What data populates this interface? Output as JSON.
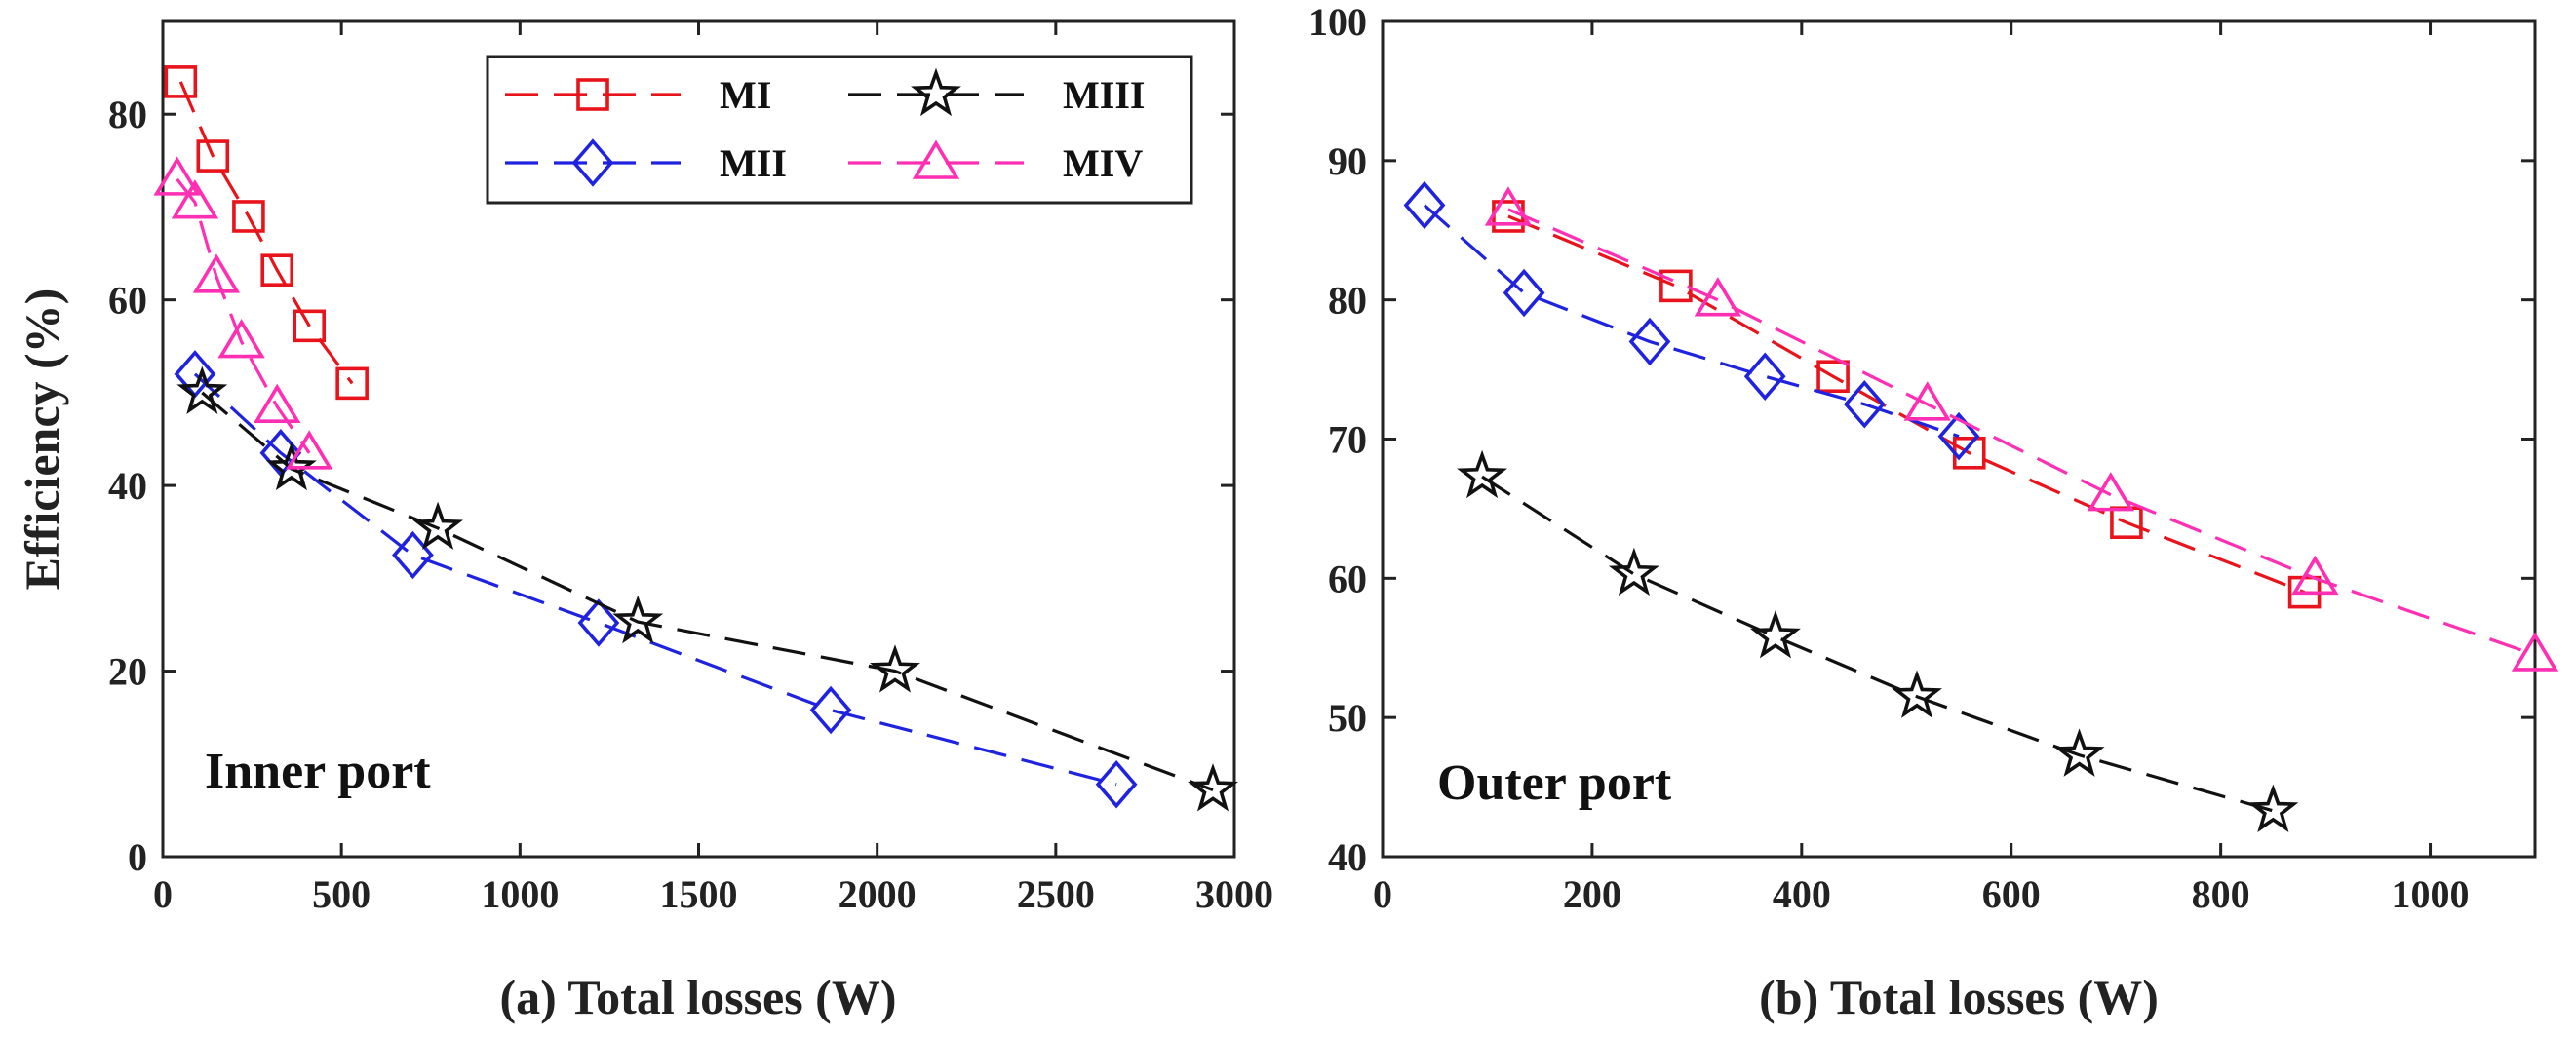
{
  "series_styles": {
    "MI": {
      "color": "#e8131b",
      "marker": "square"
    },
    "MII": {
      "color": "#1f23e0",
      "marker": "diamond"
    },
    "MIII": {
      "color": "#111111",
      "marker": "star"
    },
    "MIV": {
      "color": "#ff2fb4",
      "marker": "triangle"
    }
  },
  "chart_data": [
    {
      "type": "line",
      "name": "panel-a",
      "xlabel": "(a) Total losses (W)",
      "ylabel": "Efficiency (%)",
      "annotation": "Inner port",
      "xlim": [
        0,
        3000
      ],
      "ylim": [
        0,
        90
      ],
      "xticks": [
        0,
        500,
        1000,
        1500,
        2000,
        2500,
        3000
      ],
      "yticks": [
        0,
        20,
        40,
        60,
        80
      ],
      "legend": {
        "position": "top-right",
        "entries": [
          "MI",
          "MII",
          "MIII",
          "MIV"
        ]
      },
      "series": [
        {
          "name": "MI",
          "x": [
            50,
            140,
            240,
            320,
            410,
            530
          ],
          "y": [
            83.5,
            75.5,
            69,
            63.2,
            57.2,
            51
          ]
        },
        {
          "name": "MII",
          "x": [
            90,
            330,
            700,
            1220,
            1870,
            2670
          ],
          "y": [
            52,
            43.5,
            32.5,
            25.2,
            15.8,
            7.8
          ]
        },
        {
          "name": "MIII",
          "x": [
            110,
            360,
            770,
            1330,
            2050,
            2940
          ],
          "y": [
            50,
            41.8,
            35.4,
            25.3,
            20,
            7.2
          ]
        },
        {
          "name": "MIV",
          "x": [
            40,
            90,
            150,
            220,
            320,
            410
          ],
          "y": [
            73,
            70.5,
            62.5,
            55.5,
            48.5,
            43.5
          ]
        }
      ]
    },
    {
      "type": "line",
      "name": "panel-b",
      "xlabel": "(b) Total losses (W)",
      "ylabel": "",
      "annotation": "Outer port",
      "xlim": [
        0,
        1100
      ],
      "ylim": [
        40,
        100
      ],
      "xticks": [
        0,
        200,
        400,
        600,
        800,
        1000
      ],
      "yticks": [
        40,
        50,
        60,
        70,
        80,
        90,
        100
      ],
      "series": [
        {
          "name": "MI",
          "x": [
            120,
            280,
            430,
            560,
            710,
            880
          ],
          "y": [
            86,
            81,
            74.5,
            69,
            64,
            59
          ]
        },
        {
          "name": "MII",
          "x": [
            40,
            135,
            255,
            365,
            460,
            550
          ],
          "y": [
            86.8,
            80.5,
            77,
            74.5,
            72.5,
            70.2
          ]
        },
        {
          "name": "MIII",
          "x": [
            95,
            240,
            375,
            510,
            665,
            850
          ],
          "y": [
            67.3,
            60.3,
            55.8,
            51.5,
            47.3,
            43.3
          ]
        },
        {
          "name": "MIV",
          "x": [
            120,
            320,
            520,
            695,
            890,
            1100
          ],
          "y": [
            86.5,
            80,
            72.5,
            66,
            60,
            54.5
          ]
        }
      ]
    }
  ]
}
